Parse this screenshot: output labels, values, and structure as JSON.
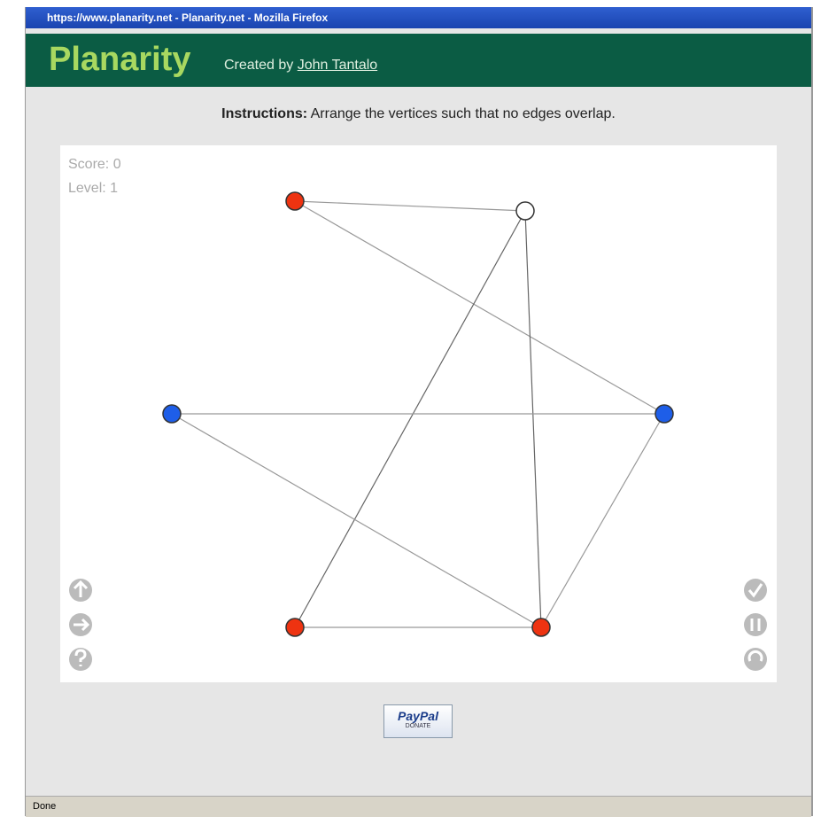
{
  "window": {
    "title": "https://www.planarity.net - Planarity.net - Mozilla Firefox"
  },
  "header": {
    "title": "Planarity",
    "credit": "Created by",
    "author": "John Tantalo"
  },
  "instructions": {
    "label": "Instructions:",
    "text": "Arrange the vertices such that no edges overlap."
  },
  "game": {
    "score": "Score: 0",
    "level": "Level: 1"
  },
  "donate": {
    "brand": "PayPal",
    "label": "DONATE"
  },
  "status": "Done"
}
